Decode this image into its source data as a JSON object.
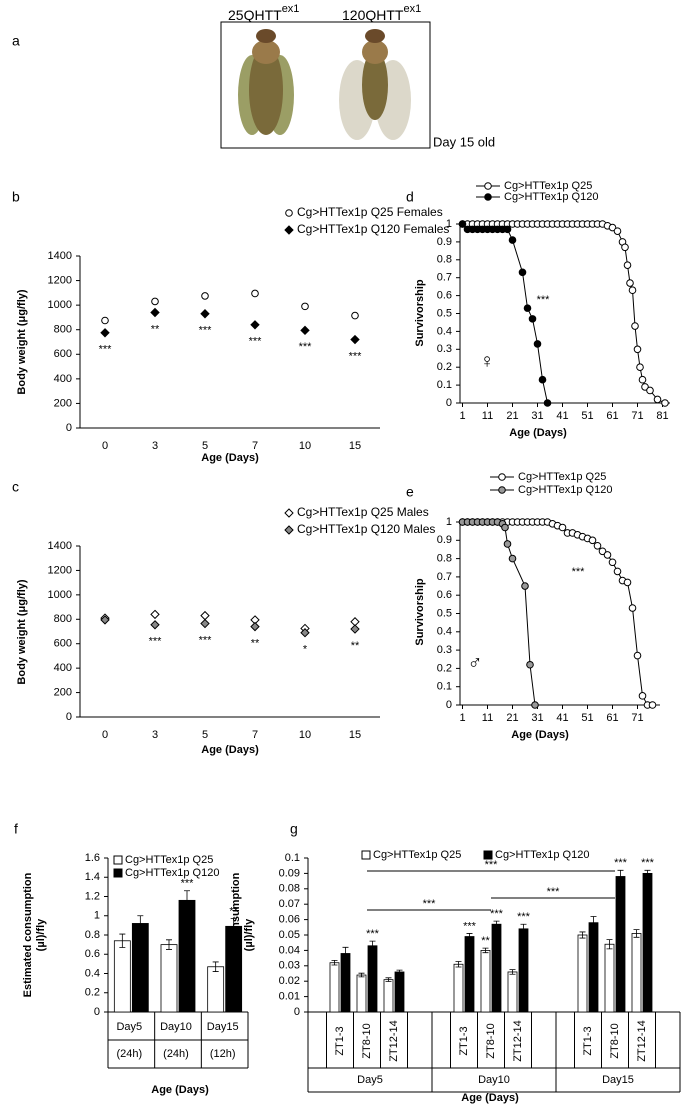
{
  "photo_panel": {
    "letter": "a",
    "genotypes": [
      {
        "name": "25QHTT",
        "superscript": "ex1"
      },
      {
        "name": "120QHTT",
        "superscript": "ex1"
      }
    ],
    "caption": "Day 15 old"
  },
  "chart_data": [
    {
      "type": "dot",
      "letter": "b",
      "xlabel": "Age (Days)",
      "ylabel": "Body weight (μg/fly)",
      "categories": [
        "0",
        "3",
        "5",
        "7",
        "10",
        "15"
      ],
      "ylim": [
        0,
        1400
      ],
      "yticks": [
        0,
        200,
        400,
        600,
        800,
        1000,
        1200,
        1400
      ],
      "series": [
        {
          "name": "Cg>HTTex1p Q25 Females",
          "marker": "circle",
          "color": "#ffffff",
          "values": [
            875,
            1030,
            1075,
            1095,
            990,
            915
          ]
        },
        {
          "name": "Cg>HTTex1p Q120 Females",
          "marker": "diamond",
          "color": "#000000",
          "values": [
            775,
            940,
            930,
            840,
            795,
            720
          ]
        }
      ],
      "annotations": [
        "***",
        "**",
        "***",
        "***",
        "***",
        "***"
      ]
    },
    {
      "type": "dot",
      "letter": "c",
      "xlabel": "Age (Days)",
      "ylabel": "Body weight (μg/fly)",
      "categories": [
        "0",
        "3",
        "5",
        "7",
        "10",
        "15"
      ],
      "ylim": [
        0,
        1400
      ],
      "yticks": [
        0,
        200,
        400,
        600,
        800,
        1000,
        1200,
        1400
      ],
      "series": [
        {
          "name": "Cg>HTTex1p Q25 Males",
          "marker": "diamond",
          "color": "#ffffff",
          "values": [
            810,
            840,
            830,
            795,
            725,
            780
          ]
        },
        {
          "name": "Cg>HTTex1p Q120 Males",
          "marker": "diamond",
          "color": "#888888",
          "values": [
            795,
            755,
            765,
            740,
            690,
            720
          ]
        }
      ],
      "annotations": [
        null,
        "***",
        "***",
        "**",
        "*",
        "**"
      ]
    },
    {
      "type": "line",
      "letter": "d",
      "xlabel": "Age (Days)",
      "ylabel": "Survivorship",
      "xlim": [
        0,
        84
      ],
      "xticks": [
        1,
        11,
        21,
        31,
        41,
        51,
        61,
        71,
        81
      ],
      "ylim": [
        0,
        1
      ],
      "yticks": [
        0,
        0.1,
        0.2,
        0.3,
        0.4,
        0.5,
        0.6,
        0.7,
        0.8,
        0.9,
        1
      ],
      "series": [
        {
          "name": "Cg>HTTex1p Q25",
          "color": "#ffffff",
          "x": [
            1,
            3,
            5,
            7,
            9,
            11,
            13,
            15,
            17,
            19,
            21,
            23,
            25,
            27,
            29,
            31,
            33,
            35,
            37,
            39,
            41,
            43,
            45,
            47,
            49,
            51,
            53,
            55,
            57,
            59,
            61,
            63,
            65,
            66,
            67,
            68,
            69,
            70,
            71,
            72,
            73,
            74,
            76,
            79,
            82
          ],
          "values": [
            1,
            1,
            1,
            1,
            1,
            1,
            1,
            1,
            1,
            1,
            1,
            1,
            1,
            1,
            1,
            1,
            1,
            1,
            1,
            1,
            1,
            1,
            1,
            1,
            1,
            1,
            1,
            1,
            1,
            0.99,
            0.98,
            0.96,
            0.9,
            0.87,
            0.77,
            0.67,
            0.63,
            0.43,
            0.3,
            0.2,
            0.13,
            0.09,
            0.07,
            0.02,
            0
          ]
        },
        {
          "name": "Cg>HTTex1p Q120",
          "color": "#000000",
          "x": [
            1,
            3,
            5,
            7,
            9,
            11,
            13,
            15,
            17,
            19,
            21,
            25,
            27,
            29,
            31,
            33,
            35
          ],
          "values": [
            1,
            0.97,
            0.97,
            0.97,
            0.97,
            0.97,
            0.97,
            0.97,
            0.97,
            0.97,
            0.91,
            0.73,
            0.53,
            0.47,
            0.33,
            0.13,
            0
          ]
        }
      ],
      "annotation": "***",
      "symbol": "♀"
    },
    {
      "type": "line",
      "letter": "e",
      "xlabel": "Age (Days)",
      "ylabel": "Survivorship",
      "xlim": [
        0,
        80
      ],
      "xticks": [
        1,
        11,
        21,
        31,
        41,
        51,
        61,
        71
      ],
      "ylim": [
        0,
        1
      ],
      "yticks": [
        0,
        0.1,
        0.2,
        0.3,
        0.4,
        0.5,
        0.6,
        0.7,
        0.8,
        0.9,
        1
      ],
      "series": [
        {
          "name": "Cg>HTTex1p Q25",
          "color": "#ffffff",
          "x": [
            1,
            3,
            5,
            7,
            9,
            11,
            13,
            15,
            17,
            19,
            21,
            23,
            25,
            27,
            29,
            31,
            33,
            35,
            37,
            39,
            41,
            43,
            45,
            47,
            49,
            51,
            53,
            55,
            57,
            59,
            61,
            63,
            65,
            67,
            69,
            71,
            73,
            75,
            77
          ],
          "values": [
            1,
            1,
            1,
            1,
            1,
            1,
            1,
            1,
            1,
            1,
            1,
            1,
            1,
            1,
            1,
            1,
            1,
            1,
            0.99,
            0.98,
            0.97,
            0.94,
            0.94,
            0.93,
            0.92,
            0.91,
            0.9,
            0.87,
            0.84,
            0.82,
            0.78,
            0.73,
            0.68,
            0.67,
            0.53,
            0.27,
            0.05,
            0,
            0
          ]
        },
        {
          "name": "Cg>HTTex1p Q120",
          "color": "#999999",
          "x": [
            1,
            3,
            5,
            7,
            9,
            11,
            13,
            15,
            17,
            18,
            19,
            21,
            26,
            28,
            30
          ],
          "values": [
            1,
            1,
            1,
            1,
            1,
            1,
            1,
            1,
            0.99,
            0.97,
            0.88,
            0.8,
            0.65,
            0.22,
            0
          ]
        }
      ],
      "annotation": "***",
      "symbol": "♂"
    },
    {
      "type": "bar",
      "letter": "f",
      "xlabel": "Age (Days)",
      "ylabel": [
        "Estimated consumption",
        "(µl)/fly"
      ],
      "categories": [
        "Day5",
        "Day10",
        "Day15"
      ],
      "sublabels": [
        "(24h)",
        "(24h)",
        "(12h)"
      ],
      "ylim": [
        0,
        1.6
      ],
      "yticks": [
        0,
        0.2,
        0.4,
        0.6,
        0.8,
        1,
        1.2,
        1.4,
        1.6
      ],
      "series": [
        {
          "name": "Cg>HTTex1p Q25",
          "color": "#ffffff",
          "values": [
            0.74,
            0.7,
            0.47
          ],
          "errors": [
            0.07,
            0.05,
            0.05
          ]
        },
        {
          "name": "Cg>HTTex1p Q120",
          "color": "#000000",
          "values": [
            0.92,
            1.16,
            0.89
          ],
          "errors": [
            0.08,
            0.1,
            0.08
          ]
        }
      ],
      "annotations": [
        null,
        "***",
        "**"
      ]
    },
    {
      "type": "bar",
      "letter": "g",
      "xlabel": "Age (Days)",
      "ylabel": [
        "Estimated consumption",
        "(µl)/fly"
      ],
      "categories": [
        "ZT1-3",
        "ZT8-10",
        "ZT12-14",
        "ZT1-3",
        "ZT8-10",
        "ZT12-14",
        "ZT1-3",
        "ZT8-10",
        "ZT12-14"
      ],
      "groups": [
        "Day5",
        "Day10",
        "Day15"
      ],
      "ylim": [
        0,
        0.1
      ],
      "yticks": [
        0,
        0.01,
        0.02,
        0.03,
        0.04,
        0.05,
        0.06,
        0.07,
        0.08,
        0.09,
        0.1
      ],
      "series": [
        {
          "name": "Cg>HTTex1p Q25",
          "color": "#ffffff",
          "values": [
            0.032,
            0.024,
            0.021,
            0.031,
            0.04,
            0.026,
            0.05,
            0.044,
            0.051
          ],
          "errors": [
            0.0015,
            0.0012,
            0.0012,
            0.0018,
            0.0015,
            0.0015,
            0.002,
            0.003,
            0.0025
          ]
        },
        {
          "name": "Cg>HTTex1p Q120",
          "color": "#000000",
          "values": [
            0.038,
            0.043,
            0.026,
            0.049,
            0.057,
            0.054,
            0.058,
            0.088,
            0.09
          ],
          "errors": [
            0.004,
            0.003,
            0.0012,
            0.002,
            0.002,
            0.003,
            0.004,
            0.004,
            0.002
          ]
        }
      ],
      "annotations": [
        null,
        "***",
        null,
        "***",
        "***",
        "***",
        null,
        "***",
        "***"
      ],
      "q25_annotations": [
        null,
        null,
        null,
        null,
        "**",
        null,
        null,
        null,
        null
      ],
      "comparisons": [
        "***",
        "***",
        "***"
      ]
    }
  ]
}
